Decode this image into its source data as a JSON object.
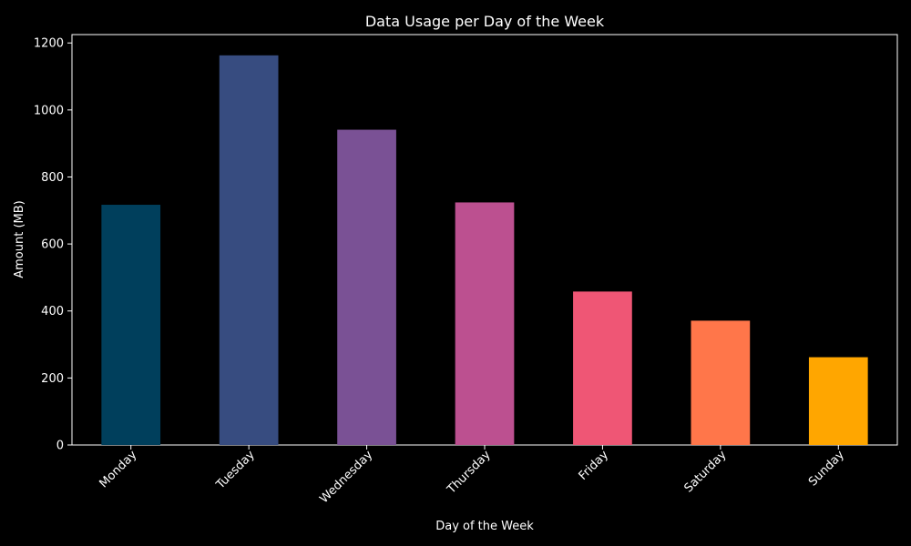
{
  "chart_data": {
    "type": "bar",
    "title": "Data Usage per Day of the Week",
    "xlabel": "Day of the Week",
    "ylabel": "Amount (MB)",
    "categories": [
      "Monday",
      "Tuesday",
      "Wednesday",
      "Thursday",
      "Friday",
      "Saturday",
      "Sunday"
    ],
    "values": [
      717,
      1163,
      941,
      724,
      458,
      371,
      262
    ],
    "colors": [
      "#003f5c",
      "#374c80",
      "#7a5195",
      "#bc5090",
      "#ef5675",
      "#ff764a",
      "#ffa600"
    ],
    "ylim": [
      0,
      1225
    ],
    "yticks": [
      "0",
      "200",
      "400",
      "600",
      "800",
      "1000",
      "1200"
    ],
    "grid": false,
    "legend": "none",
    "background": "#000000",
    "foreground": "#ffffff"
  }
}
